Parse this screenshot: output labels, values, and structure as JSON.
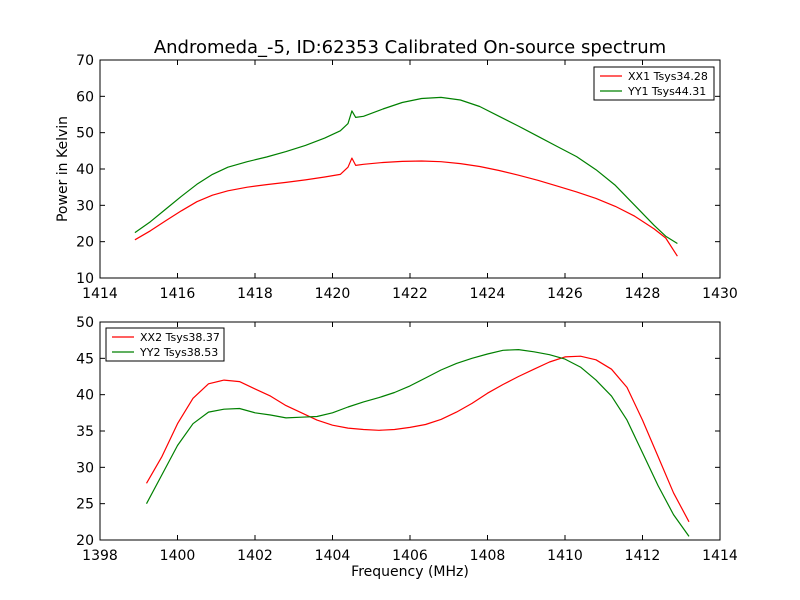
{
  "figure": {
    "title": "Andromeda_-5, ID:62353 Calibrated On-source spectrum"
  },
  "chart_data": [
    {
      "type": "line",
      "title": "Andromeda_-5, ID:62353 Calibrated On-source spectrum",
      "xlabel": "",
      "ylabel": "Power in Kelvin",
      "xlim": [
        1414,
        1430
      ],
      "ylim": [
        10,
        70
      ],
      "xticks": [
        1414,
        1416,
        1418,
        1420,
        1422,
        1424,
        1426,
        1428,
        1430
      ],
      "yticks": [
        10,
        20,
        30,
        40,
        50,
        60,
        70
      ],
      "grid": false,
      "legend": "top-right",
      "series": [
        {
          "name": "XX1 Tsys34.28",
          "color": "#ff0000",
          "points": [
            [
              1414.9,
              20.5
            ],
            [
              1415.3,
              23.0
            ],
            [
              1415.7,
              25.8
            ],
            [
              1416.1,
              28.5
            ],
            [
              1416.5,
              31.0
            ],
            [
              1416.9,
              32.8
            ],
            [
              1417.3,
              34.0
            ],
            [
              1417.8,
              35.0
            ],
            [
              1418.3,
              35.7
            ],
            [
              1418.8,
              36.3
            ],
            [
              1419.3,
              37.0
            ],
            [
              1419.8,
              37.8
            ],
            [
              1420.2,
              38.5
            ],
            [
              1420.4,
              40.5
            ],
            [
              1420.5,
              43.0
            ],
            [
              1420.6,
              41.0
            ],
            [
              1420.8,
              41.3
            ],
            [
              1421.3,
              41.8
            ],
            [
              1421.8,
              42.1
            ],
            [
              1422.3,
              42.2
            ],
            [
              1422.8,
              42.0
            ],
            [
              1423.3,
              41.5
            ],
            [
              1423.8,
              40.7
            ],
            [
              1424.3,
              39.6
            ],
            [
              1424.8,
              38.3
            ],
            [
              1425.3,
              36.9
            ],
            [
              1425.8,
              35.3
            ],
            [
              1426.3,
              33.7
            ],
            [
              1426.8,
              31.9
            ],
            [
              1427.3,
              29.7
            ],
            [
              1427.8,
              27.0
            ],
            [
              1428.3,
              23.5
            ],
            [
              1428.6,
              21.0
            ],
            [
              1428.9,
              16.0
            ]
          ]
        },
        {
          "name": "YY1 Tsys44.31",
          "color": "#008000",
          "points": [
            [
              1414.9,
              22.5
            ],
            [
              1415.3,
              25.5
            ],
            [
              1415.7,
              29.0
            ],
            [
              1416.1,
              32.5
            ],
            [
              1416.5,
              35.8
            ],
            [
              1416.9,
              38.5
            ],
            [
              1417.3,
              40.5
            ],
            [
              1417.8,
              42.0
            ],
            [
              1418.3,
              43.3
            ],
            [
              1418.8,
              44.8
            ],
            [
              1419.3,
              46.5
            ],
            [
              1419.8,
              48.5
            ],
            [
              1420.2,
              50.5
            ],
            [
              1420.4,
              52.5
            ],
            [
              1420.5,
              56.0
            ],
            [
              1420.6,
              54.2
            ],
            [
              1420.8,
              54.5
            ],
            [
              1421.3,
              56.5
            ],
            [
              1421.8,
              58.3
            ],
            [
              1422.3,
              59.4
            ],
            [
              1422.8,
              59.7
            ],
            [
              1423.3,
              59.0
            ],
            [
              1423.8,
              57.2
            ],
            [
              1424.3,
              54.5
            ],
            [
              1424.8,
              51.8
            ],
            [
              1425.3,
              49.0
            ],
            [
              1425.8,
              46.2
            ],
            [
              1426.3,
              43.4
            ],
            [
              1426.8,
              39.8
            ],
            [
              1427.3,
              35.5
            ],
            [
              1427.8,
              30.0
            ],
            [
              1428.3,
              24.5
            ],
            [
              1428.6,
              21.5
            ],
            [
              1428.9,
              19.5
            ]
          ]
        }
      ]
    },
    {
      "type": "line",
      "title": "",
      "xlabel": "Frequency (MHz)",
      "ylabel": "",
      "xlim": [
        1398,
        1414
      ],
      "ylim": [
        20,
        50
      ],
      "xticks": [
        1398,
        1400,
        1402,
        1404,
        1406,
        1408,
        1410,
        1412,
        1414
      ],
      "yticks": [
        20,
        25,
        30,
        35,
        40,
        45,
        50
      ],
      "grid": false,
      "legend": "top-left",
      "series": [
        {
          "name": "XX2 Tsys38.37",
          "color": "#ff0000",
          "points": [
            [
              1399.2,
              27.8
            ],
            [
              1399.6,
              31.5
            ],
            [
              1400.0,
              36.0
            ],
            [
              1400.4,
              39.5
            ],
            [
              1400.8,
              41.5
            ],
            [
              1401.2,
              42.0
            ],
            [
              1401.6,
              41.8
            ],
            [
              1402.0,
              40.8
            ],
            [
              1402.4,
              39.8
            ],
            [
              1402.8,
              38.5
            ],
            [
              1403.2,
              37.5
            ],
            [
              1403.6,
              36.5
            ],
            [
              1404.0,
              35.8
            ],
            [
              1404.4,
              35.4
            ],
            [
              1404.8,
              35.2
            ],
            [
              1405.2,
              35.1
            ],
            [
              1405.6,
              35.2
            ],
            [
              1406.0,
              35.5
            ],
            [
              1406.4,
              35.9
            ],
            [
              1406.8,
              36.6
            ],
            [
              1407.2,
              37.6
            ],
            [
              1407.6,
              38.8
            ],
            [
              1408.0,
              40.2
            ],
            [
              1408.4,
              41.4
            ],
            [
              1408.8,
              42.5
            ],
            [
              1409.2,
              43.5
            ],
            [
              1409.6,
              44.5
            ],
            [
              1410.0,
              45.2
            ],
            [
              1410.4,
              45.3
            ],
            [
              1410.8,
              44.8
            ],
            [
              1411.2,
              43.5
            ],
            [
              1411.6,
              41.0
            ],
            [
              1412.0,
              36.5
            ],
            [
              1412.4,
              31.5
            ],
            [
              1412.8,
              26.5
            ],
            [
              1413.2,
              22.5
            ]
          ]
        },
        {
          "name": "YY2 Tsys38.53",
          "color": "#008000",
          "points": [
            [
              1399.2,
              25.0
            ],
            [
              1399.6,
              29.0
            ],
            [
              1400.0,
              33.0
            ],
            [
              1400.4,
              36.0
            ],
            [
              1400.8,
              37.6
            ],
            [
              1401.2,
              38.0
            ],
            [
              1401.6,
              38.1
            ],
            [
              1402.0,
              37.5
            ],
            [
              1402.4,
              37.2
            ],
            [
              1402.8,
              36.8
            ],
            [
              1403.2,
              36.9
            ],
            [
              1403.6,
              37.0
            ],
            [
              1404.0,
              37.5
            ],
            [
              1404.4,
              38.3
            ],
            [
              1404.8,
              39.0
            ],
            [
              1405.2,
              39.6
            ],
            [
              1405.6,
              40.3
            ],
            [
              1406.0,
              41.2
            ],
            [
              1406.4,
              42.3
            ],
            [
              1406.8,
              43.4
            ],
            [
              1407.2,
              44.3
            ],
            [
              1407.6,
              45.0
            ],
            [
              1408.0,
              45.6
            ],
            [
              1408.4,
              46.1
            ],
            [
              1408.8,
              46.2
            ],
            [
              1409.2,
              45.9
            ],
            [
              1409.6,
              45.5
            ],
            [
              1410.0,
              44.9
            ],
            [
              1410.4,
              43.8
            ],
            [
              1410.8,
              42.0
            ],
            [
              1411.2,
              39.8
            ],
            [
              1411.6,
              36.5
            ],
            [
              1412.0,
              32.0
            ],
            [
              1412.4,
              27.5
            ],
            [
              1412.8,
              23.5
            ],
            [
              1413.2,
              20.5
            ]
          ]
        }
      ]
    }
  ]
}
